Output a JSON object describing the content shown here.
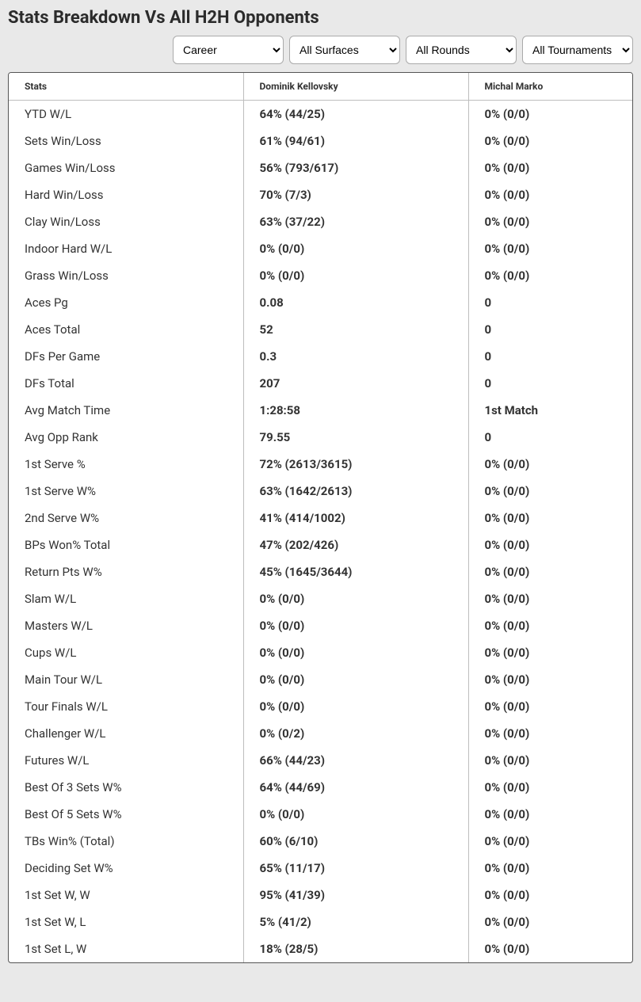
{
  "title": "Stats Breakdown Vs All H2H Opponents",
  "filters": {
    "career": {
      "selected": "Career"
    },
    "surfaces": {
      "selected": "All Surfaces"
    },
    "rounds": {
      "selected": "All Rounds"
    },
    "tournaments": {
      "selected": "All Tournaments"
    }
  },
  "columns": {
    "stats": "Stats",
    "player1": "Dominik Kellovsky",
    "player2": "Michal Marko"
  },
  "rows": [
    {
      "stat": "YTD W/L",
      "p1": "64% (44/25)",
      "p2": "0% (0/0)"
    },
    {
      "stat": "Sets Win/Loss",
      "p1": "61% (94/61)",
      "p2": "0% (0/0)"
    },
    {
      "stat": "Games Win/Loss",
      "p1": "56% (793/617)",
      "p2": "0% (0/0)"
    },
    {
      "stat": "Hard Win/Loss",
      "p1": "70% (7/3)",
      "p2": "0% (0/0)"
    },
    {
      "stat": "Clay Win/Loss",
      "p1": "63% (37/22)",
      "p2": "0% (0/0)"
    },
    {
      "stat": "Indoor Hard W/L",
      "p1": "0% (0/0)",
      "p2": "0% (0/0)"
    },
    {
      "stat": "Grass Win/Loss",
      "p1": "0% (0/0)",
      "p2": "0% (0/0)"
    },
    {
      "stat": "Aces Pg",
      "p1": "0.08",
      "p2": "0"
    },
    {
      "stat": "Aces Total",
      "p1": "52",
      "p2": "0"
    },
    {
      "stat": "DFs Per Game",
      "p1": "0.3",
      "p2": "0"
    },
    {
      "stat": "DFs Total",
      "p1": "207",
      "p2": "0"
    },
    {
      "stat": "Avg Match Time",
      "p1": "1:28:58",
      "p2": "1st Match"
    },
    {
      "stat": "Avg Opp Rank",
      "p1": "79.55",
      "p2": "0"
    },
    {
      "stat": "1st Serve %",
      "p1": "72% (2613/3615)",
      "p2": "0% (0/0)"
    },
    {
      "stat": "1st Serve W%",
      "p1": "63% (1642/2613)",
      "p2": "0% (0/0)"
    },
    {
      "stat": "2nd Serve W%",
      "p1": "41% (414/1002)",
      "p2": "0% (0/0)"
    },
    {
      "stat": "BPs Won% Total",
      "p1": "47% (202/426)",
      "p2": "0% (0/0)"
    },
    {
      "stat": "Return Pts W%",
      "p1": "45% (1645/3644)",
      "p2": "0% (0/0)"
    },
    {
      "stat": "Slam W/L",
      "p1": "0% (0/0)",
      "p2": "0% (0/0)"
    },
    {
      "stat": "Masters W/L",
      "p1": "0% (0/0)",
      "p2": "0% (0/0)"
    },
    {
      "stat": "Cups W/L",
      "p1": "0% (0/0)",
      "p2": "0% (0/0)"
    },
    {
      "stat": "Main Tour W/L",
      "p1": "0% (0/0)",
      "p2": "0% (0/0)"
    },
    {
      "stat": "Tour Finals W/L",
      "p1": "0% (0/0)",
      "p2": "0% (0/0)"
    },
    {
      "stat": "Challenger W/L",
      "p1": "0% (0/2)",
      "p2": "0% (0/0)"
    },
    {
      "stat": "Futures W/L",
      "p1": "66% (44/23)",
      "p2": "0% (0/0)"
    },
    {
      "stat": "Best Of 3 Sets W%",
      "p1": "64% (44/69)",
      "p2": "0% (0/0)"
    },
    {
      "stat": "Best Of 5 Sets W%",
      "p1": "0% (0/0)",
      "p2": "0% (0/0)"
    },
    {
      "stat": "TBs Win% (Total)",
      "p1": "60% (6/10)",
      "p2": "0% (0/0)"
    },
    {
      "stat": "Deciding Set W%",
      "p1": "65% (11/17)",
      "p2": "0% (0/0)"
    },
    {
      "stat": "1st Set W, W",
      "p1": "95% (41/39)",
      "p2": "0% (0/0)"
    },
    {
      "stat": "1st Set W, L",
      "p1": "5% (41/2)",
      "p2": "0% (0/0)"
    },
    {
      "stat": "1st Set L, W",
      "p1": "18% (28/5)",
      "p2": "0% (0/0)"
    }
  ]
}
